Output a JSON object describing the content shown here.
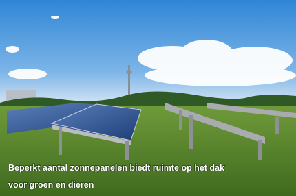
{
  "caption": {
    "lines": [
      "Beperkt aantal zonnepanelen biedt ruimte op het dak",
      "voor groen en dieren"
    ]
  }
}
